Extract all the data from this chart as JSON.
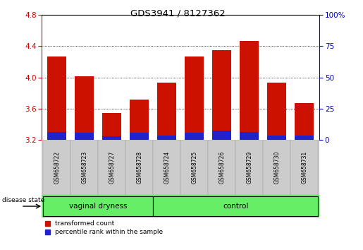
{
  "title": "GDS3941 / 8127362",
  "samples": [
    "GSM658722",
    "GSM658723",
    "GSM658727",
    "GSM658728",
    "GSM658724",
    "GSM658725",
    "GSM658726",
    "GSM658729",
    "GSM658730",
    "GSM658731"
  ],
  "red_values": [
    4.27,
    4.02,
    3.55,
    3.72,
    3.93,
    4.27,
    4.35,
    4.47,
    3.93,
    3.67
  ],
  "blue_top": [
    3.3,
    3.29,
    3.25,
    3.29,
    3.26,
    3.29,
    3.32,
    3.3,
    3.26,
    3.26
  ],
  "ymin": 3.2,
  "ymax": 4.8,
  "yticks": [
    3.2,
    3.6,
    4.0,
    4.4,
    4.8
  ],
  "right_yticks": [
    0,
    25,
    50,
    75,
    100
  ],
  "bar_color_red": "#CC1100",
  "bar_color_blue": "#2222CC",
  "legend_red": "transformed count",
  "legend_blue": "percentile rank within the sample",
  "left_tick_color": "#CC0000",
  "right_tick_color": "#0000BB",
  "tick_label_area_bg": "#C8C8C8",
  "group_area_bg": "#66EE66",
  "group_border": "#000000",
  "vaginal_label": "vaginal dryness",
  "control_label": "control",
  "disease_state_label": "disease state"
}
